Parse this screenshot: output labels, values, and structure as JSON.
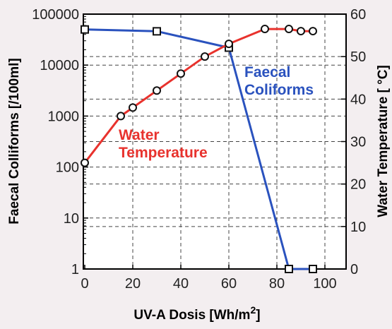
{
  "chart_data": {
    "type": "line",
    "title": "",
    "xlabel": "UV-A Dosis [Wh/m",
    "xlabel_superscript": "2",
    "xlabel_close": "]",
    "ylabel_left": "Faecal Colliforms [/100ml]",
    "ylabel_right": "Water Temperature [ °C]",
    "xlim": [
      0,
      105
    ],
    "ylim_left": [
      1,
      100000
    ],
    "left_scale": "log",
    "ylim_right": [
      0,
      60
    ],
    "grid": "dashed",
    "x_ticks": [
      0,
      20,
      40,
      60,
      80,
      100
    ],
    "x_tick_labels": [
      "0",
      "20",
      "40",
      "60",
      "80",
      "100"
    ],
    "y_left_ticks": [
      1,
      10,
      100,
      1000,
      10000,
      100000
    ],
    "y_left_tick_labels": [
      "1",
      "10",
      "100",
      "1000",
      "10000",
      "100000"
    ],
    "y_right_ticks": [
      0,
      10,
      20,
      30,
      40,
      50,
      60
    ],
    "y_right_tick_labels": [
      "0",
      "10",
      "20",
      "30",
      "40",
      "50",
      "60"
    ],
    "series": [
      {
        "name": "Faecal Coliforms",
        "label_lines": [
          "Faecal",
          "Coliforms"
        ],
        "color": "#2a52be",
        "axis": "left",
        "marker": "square",
        "x": [
          0,
          30,
          60,
          85,
          95
        ],
        "y": [
          50000,
          46000,
          22000,
          1,
          1
        ]
      },
      {
        "name": "Water Temperature",
        "label_lines": [
          "Water",
          "Temperature"
        ],
        "color": "#e8322d",
        "axis": "right",
        "marker": "circle",
        "x": [
          0,
          15,
          20,
          30,
          40,
          50,
          60,
          75,
          85,
          90,
          95
        ],
        "y": [
          25,
          36,
          38,
          42,
          46,
          50,
          53,
          56.5,
          56.5,
          56,
          56
        ]
      }
    ]
  }
}
